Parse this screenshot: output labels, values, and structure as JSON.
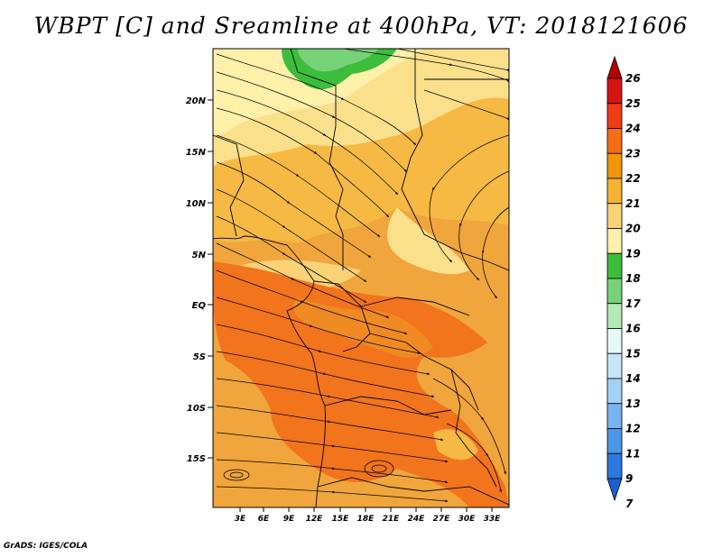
{
  "title": "WBPT [C] and Sreamline at 400hPa, VT: 2018121606",
  "footer": "GrADS: IGES/COLA",
  "map": {
    "lat_labels": [
      "20N",
      "15N",
      "10N",
      "5N",
      "EQ",
      "5S",
      "10S",
      "15S"
    ],
    "lon_labels": [
      "3E",
      "6E",
      "9E",
      "12E",
      "15E",
      "18E",
      "21E",
      "24E",
      "27E",
      "30E",
      "33E"
    ]
  },
  "colorbar": {
    "labels": [
      "26",
      "25",
      "24",
      "23",
      "22",
      "21",
      "20",
      "19",
      "18",
      "17",
      "16",
      "15",
      "14",
      "13",
      "12",
      "11",
      "9",
      "7"
    ],
    "colors": [
      "#b40000",
      "#d71414",
      "#f03c14",
      "#f56e14",
      "#f0960a",
      "#f5b432",
      "#fad278",
      "#fff0aa",
      "#3cbe3c",
      "#78d278",
      "#b4eab4",
      "#e6f8f8",
      "#c8e6fa",
      "#a0d2f5",
      "#78b4f0",
      "#4b96e6",
      "#2d78dc",
      "#1e5fd2"
    ]
  }
}
